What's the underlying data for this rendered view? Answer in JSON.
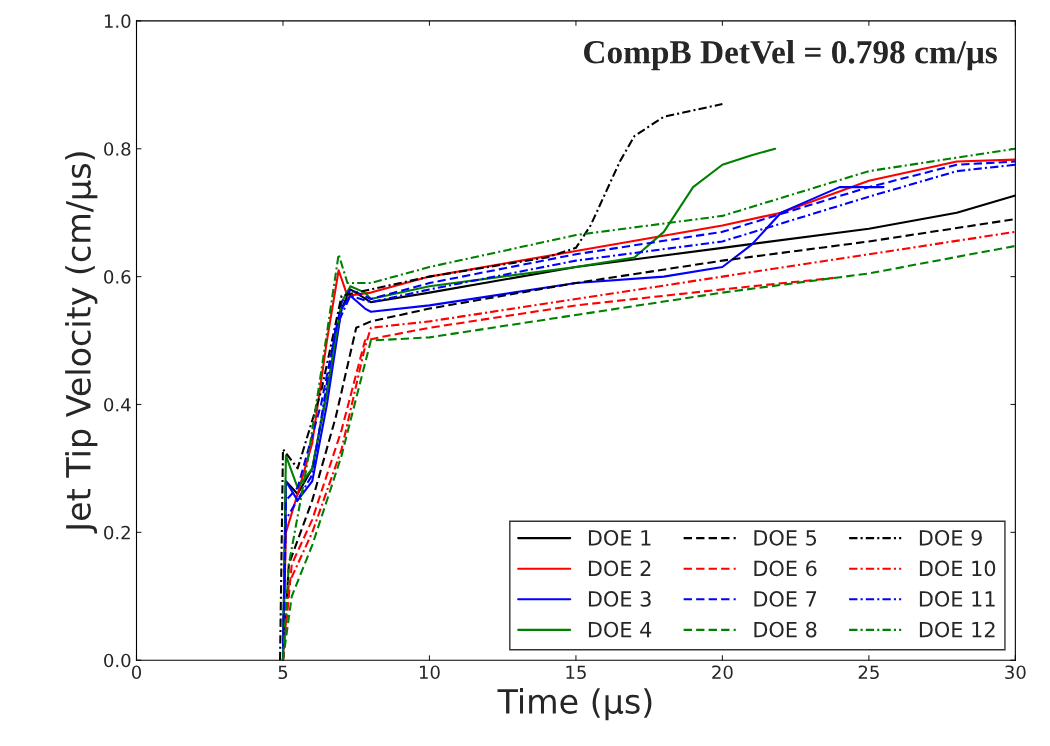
{
  "chart_data": {
    "type": "line",
    "xlabel": "Time (μs)",
    "ylabel": "Jet Tip Velocity (cm/μs)",
    "annotations": [
      "CompB DetVel = 0.798 cm/μs"
    ],
    "xlim": [
      0,
      30
    ],
    "ylim": [
      0,
      1.0
    ],
    "xticks": [
      0,
      5,
      10,
      15,
      20,
      25,
      30
    ],
    "yticks": [
      {
        "value": 0,
        "label": "0.0"
      },
      {
        "value": 0.2,
        "label": "0.2"
      },
      {
        "value": 0.4,
        "label": "0.4"
      },
      {
        "value": 0.6,
        "label": "0.6"
      },
      {
        "value": 0.8,
        "label": "0.8"
      },
      {
        "value": 1.0,
        "label": "1.0"
      }
    ],
    "grid": false,
    "legend": "bottom right",
    "marker": "none",
    "series": [
      {
        "name": "DOE 1",
        "color": "#000000",
        "line_style": "solid",
        "x": [
          5,
          5.1,
          5.5,
          6,
          6.5,
          7,
          7.3,
          8,
          10,
          15,
          20,
          25,
          28,
          30
        ],
        "values": [
          0,
          0.28,
          0.26,
          0.3,
          0.42,
          0.55,
          0.58,
          0.56,
          0.575,
          0.615,
          0.645,
          0.675,
          0.7,
          0.727
        ]
      },
      {
        "name": "DOE 2",
        "color": "#ff0000",
        "line_style": "solid",
        "x": [
          5,
          5.1,
          5.5,
          6,
          6.5,
          6.9,
          7.2,
          8,
          10,
          15,
          20,
          22,
          25,
          28,
          30
        ],
        "values": [
          0,
          0.2,
          0.26,
          0.34,
          0.5,
          0.61,
          0.57,
          0.575,
          0.6,
          0.64,
          0.68,
          0.7,
          0.75,
          0.78,
          0.783
        ]
      },
      {
        "name": "DOE 3",
        "color": "#0000ff",
        "line_style": "solid",
        "x": [
          5,
          5.1,
          5.5,
          6,
          6.5,
          7,
          7.3,
          7.8,
          8,
          10,
          15,
          18,
          20,
          21,
          22,
          23,
          24,
          25.5
        ],
        "values": [
          0,
          0.28,
          0.25,
          0.28,
          0.4,
          0.55,
          0.57,
          0.55,
          0.545,
          0.555,
          0.59,
          0.6,
          0.615,
          0.65,
          0.7,
          0.72,
          0.74,
          0.74
        ]
      },
      {
        "name": "DOE 4",
        "color": "#008000",
        "line_style": "solid",
        "x": [
          5,
          5.1,
          5.5,
          6,
          6.5,
          7,
          7.3,
          7.8,
          8,
          10,
          15,
          17,
          18,
          19,
          20,
          21,
          21.8
        ],
        "values": [
          0,
          0.32,
          0.27,
          0.3,
          0.42,
          0.56,
          0.585,
          0.575,
          0.565,
          0.585,
          0.615,
          0.63,
          0.67,
          0.74,
          0.775,
          0.79,
          0.8
        ]
      },
      {
        "name": "DOE 5",
        "color": "#000000",
        "line_style": "dashed",
        "x": [
          5,
          5.2,
          6,
          6.8,
          7.5,
          8,
          10,
          15,
          20,
          25,
          30
        ],
        "values": [
          0,
          0.15,
          0.25,
          0.38,
          0.52,
          0.53,
          0.55,
          0.59,
          0.625,
          0.655,
          0.69
        ]
      },
      {
        "name": "DOE 6",
        "color": "#ff0000",
        "line_style": "dashed",
        "x": [
          5,
          5.3,
          6,
          7,
          7.8,
          8.3,
          10,
          15,
          20,
          23.8
        ],
        "values": [
          0,
          0.15,
          0.22,
          0.36,
          0.5,
          0.505,
          0.52,
          0.555,
          0.58,
          0.598
        ]
      },
      {
        "name": "DOE 7",
        "color": "#0000ff",
        "line_style": "dashed",
        "x": [
          5,
          5.1,
          5.5,
          6.3,
          7,
          7.3,
          8,
          10,
          15,
          20,
          25,
          28,
          30
        ],
        "values": [
          0,
          0.25,
          0.27,
          0.4,
          0.56,
          0.58,
          0.565,
          0.59,
          0.635,
          0.67,
          0.74,
          0.775,
          0.78
        ]
      },
      {
        "name": "DOE 8",
        "color": "#008000",
        "line_style": "dashed",
        "x": [
          5,
          5.3,
          6,
          7,
          8,
          10,
          15,
          20,
          25,
          30
        ],
        "values": [
          0,
          0.1,
          0.18,
          0.32,
          0.5,
          0.505,
          0.54,
          0.575,
          0.605,
          0.648
        ]
      },
      {
        "name": "DOE 9",
        "color": "#000000",
        "line_style": "dashdot",
        "x": [
          4.9,
          5,
          5.5,
          6.3,
          7,
          7.5,
          10,
          14,
          15,
          15.5,
          16,
          16.5,
          17,
          18,
          19,
          20
        ],
        "values": [
          0,
          0.33,
          0.3,
          0.42,
          0.57,
          0.575,
          0.6,
          0.63,
          0.645,
          0.68,
          0.73,
          0.78,
          0.82,
          0.85,
          0.86,
          0.87
        ]
      },
      {
        "name": "DOE 10",
        "color": "#ff0000",
        "line_style": "dashdot",
        "x": [
          5,
          5.2,
          6,
          7,
          7.8,
          8,
          10,
          15,
          20,
          25,
          30
        ],
        "values": [
          0,
          0.12,
          0.2,
          0.33,
          0.49,
          0.52,
          0.53,
          0.565,
          0.6,
          0.635,
          0.67
        ]
      },
      {
        "name": "DOE 11",
        "color": "#0000ff",
        "line_style": "dashdot",
        "x": [
          5,
          5.1,
          6,
          6.8,
          7.3,
          8,
          10,
          15,
          20,
          25,
          28,
          30
        ],
        "values": [
          0,
          0.22,
          0.29,
          0.52,
          0.57,
          0.56,
          0.58,
          0.625,
          0.655,
          0.725,
          0.765,
          0.775
        ]
      },
      {
        "name": "DOE 12",
        "color": "#008000",
        "line_style": "dashdot",
        "x": [
          5,
          5.2,
          5.8,
          6.3,
          6.9,
          7.2,
          8,
          10,
          15,
          20,
          25,
          30
        ],
        "values": [
          0,
          0.15,
          0.3,
          0.45,
          0.635,
          0.59,
          0.59,
          0.615,
          0.665,
          0.695,
          0.765,
          0.8
        ]
      }
    ]
  }
}
